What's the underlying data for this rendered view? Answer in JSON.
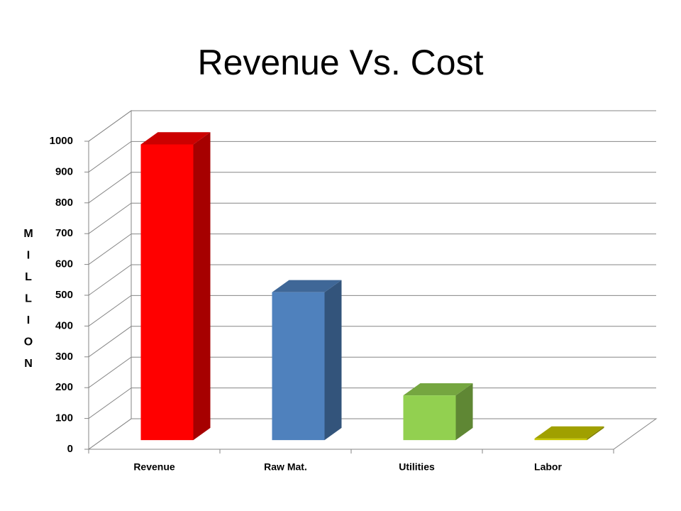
{
  "chart_data": {
    "type": "bar3d",
    "title": "Revenue Vs. Cost",
    "y_label": "MILLION",
    "categories": [
      "Revenue",
      "Raw Mat.",
      "Utilities",
      "Labor"
    ],
    "values": [
      960,
      480,
      145,
      5
    ],
    "colors": [
      "#ff0000",
      "#4f81bd",
      "#92d050",
      "#c8c800"
    ],
    "ylim": [
      0,
      1000
    ],
    "yticks": [
      0,
      100,
      200,
      300,
      400,
      500,
      600,
      700,
      800,
      900,
      1000
    ],
    "grid": true
  }
}
